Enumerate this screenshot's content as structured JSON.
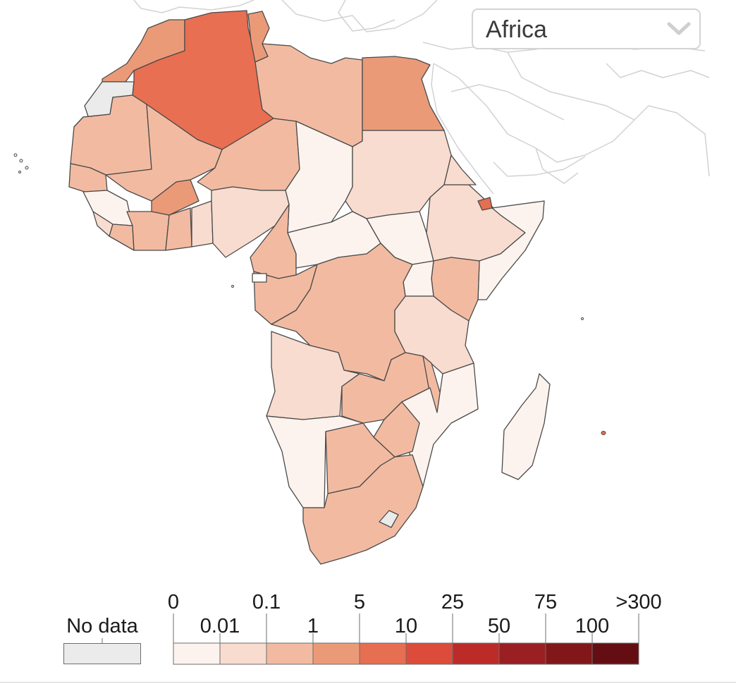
{
  "selector": {
    "selected": "Africa",
    "icon": "chevron-down-icon"
  },
  "legend": {
    "no_data_label": "No data",
    "no_data_color": "#ebebeb",
    "top_labels": [
      "0",
      "0.1",
      "5",
      "25",
      "75",
      ">300"
    ],
    "bottom_labels": [
      "0.01",
      "1",
      "10",
      "50",
      "100"
    ],
    "bin_colors": [
      "#fdf3ee",
      "#f8dccf",
      "#f2bba1",
      "#eb9a78",
      "#e66e51",
      "#dd4b3a",
      "#bd2b29",
      "#9a1f22",
      "#811719",
      "#640e14"
    ]
  },
  "map": {
    "land_outline_color": "#d2d2d2",
    "border_color": "#4a4a4a",
    "africa_fill_default": "#f2bba1",
    "highlight_colors": {
      "algeria": "#e86f51",
      "egypt": "#eb9a78",
      "morocco": "#eb9a78",
      "tunisia": "#eb9a78",
      "burkina_faso": "#eb9a78",
      "djibouti": "#e66e51",
      "western_sahara": "#ebebeb",
      "lesotho": "#ebebeb"
    }
  }
}
